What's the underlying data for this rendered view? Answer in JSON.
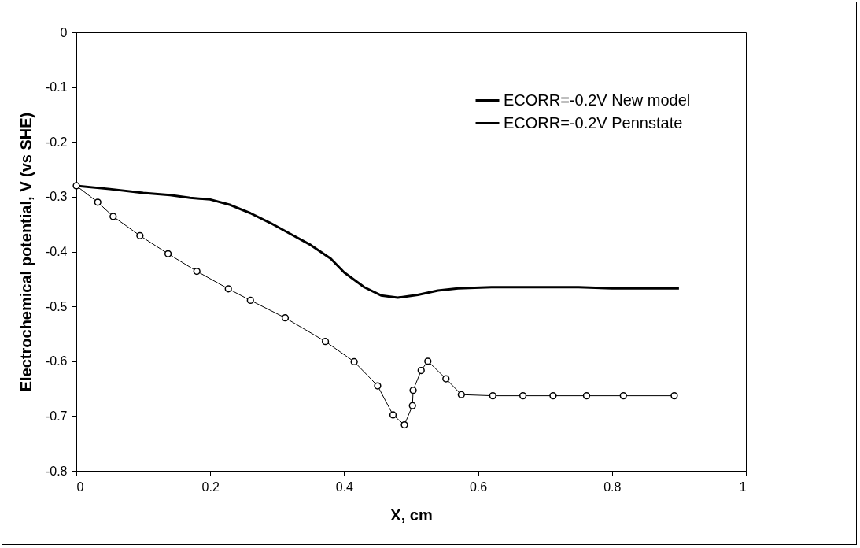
{
  "chart_data": {
    "type": "line",
    "xlabel": "X, cm",
    "ylabel": "Electrochemical potential, V (vs SHE)",
    "xlim": [
      0,
      1
    ],
    "xticks": [
      0,
      0.2,
      0.4,
      0.6,
      0.8,
      1
    ],
    "ylim": [
      -0.8,
      0
    ],
    "yticks": [
      -0.8,
      -0.7,
      -0.6,
      -0.5,
      -0.4,
      -0.3,
      -0.2,
      -0.1,
      0
    ],
    "grid": false,
    "legend": "top right",
    "series": [
      {
        "name": "ECORR=-0.2V New model",
        "color": "#000000",
        "marker": "none",
        "x": [
          0,
          0.05,
          0.1,
          0.14,
          0.17,
          0.2,
          0.23,
          0.26,
          0.29,
          0.32,
          0.35,
          0.38,
          0.4,
          0.43,
          0.455,
          0.48,
          0.51,
          0.54,
          0.57,
          0.62,
          0.7,
          0.75,
          0.8,
          0.9
        ],
        "values": [
          -0.28,
          -0.286,
          -0.293,
          -0.297,
          -0.302,
          -0.305,
          -0.315,
          -0.33,
          -0.348,
          -0.368,
          -0.388,
          -0.413,
          -0.438,
          -0.465,
          -0.48,
          -0.484,
          -0.479,
          -0.471,
          -0.467,
          -0.465,
          -0.465,
          -0.465,
          -0.467,
          -0.467
        ]
      },
      {
        "name": "ECORR=-0.2V Pennstate",
        "color": "#000000",
        "marker": "circle",
        "x": [
          0,
          0.032,
          0.055,
          0.095,
          0.137,
          0.18,
          0.227,
          0.26,
          0.312,
          0.372,
          0.415,
          0.45,
          0.473,
          0.49,
          0.502,
          0.503,
          0.515,
          0.525,
          0.552,
          0.575,
          0.622,
          0.667,
          0.712,
          0.762,
          0.817,
          0.893
        ],
        "values": [
          -0.28,
          -0.31,
          -0.336,
          -0.371,
          -0.404,
          -0.436,
          -0.468,
          -0.489,
          -0.521,
          -0.564,
          -0.601,
          -0.645,
          -0.698,
          -0.716,
          -0.681,
          -0.653,
          -0.617,
          -0.6,
          -0.632,
          -0.661,
          -0.663,
          -0.663,
          -0.663,
          -0.663,
          -0.663,
          -0.663
        ]
      }
    ]
  }
}
